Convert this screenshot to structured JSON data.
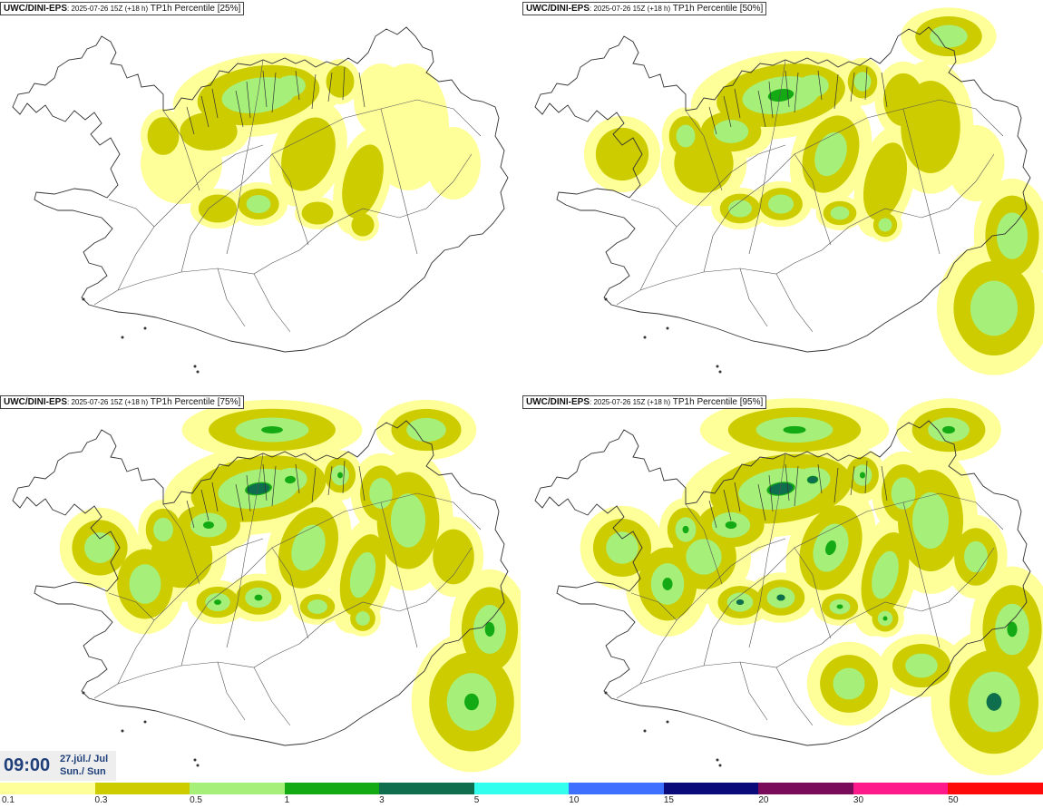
{
  "panels": [
    {
      "model": "UWC/DINI-EPS",
      "run": ": 2025-07-26 15Z (+18 h)",
      "field": " TP1h Percentile [25%]",
      "level": 1
    },
    {
      "model": "UWC/DINI-EPS",
      "run": ": 2025-07-26 15Z (+18 h)",
      "field": " TP1h Percentile [50%]",
      "level": 2
    },
    {
      "model": "UWC/DINI-EPS",
      "run": ": 2025-07-26 15Z (+18 h)",
      "field": " TP1h Percentile [75%]",
      "level": 3
    },
    {
      "model": "UWC/DINI-EPS",
      "run": ": 2025-07-26 15Z (+18 h)",
      "field": " TP1h Percentile [95%]",
      "level": 4
    }
  ],
  "valid_time": {
    "hour": "09:00",
    "date_line1": "27.júl./ Jul",
    "date_line2": "Sun./ Sun"
  },
  "legend": {
    "colors": [
      "#ffff99",
      "#cccc00",
      "#a6f07a",
      "#14aa14",
      "#0e6e4e",
      "#33ffee",
      "#3f6fff",
      "#0a0a7a",
      "#7a0a5a",
      "#ff1a8c",
      "#ff0a0a"
    ],
    "labels": [
      "0.1",
      "0.3",
      "0.5",
      "1",
      "3",
      "5",
      "10",
      "15",
      "20",
      "30",
      "50"
    ]
  }
}
